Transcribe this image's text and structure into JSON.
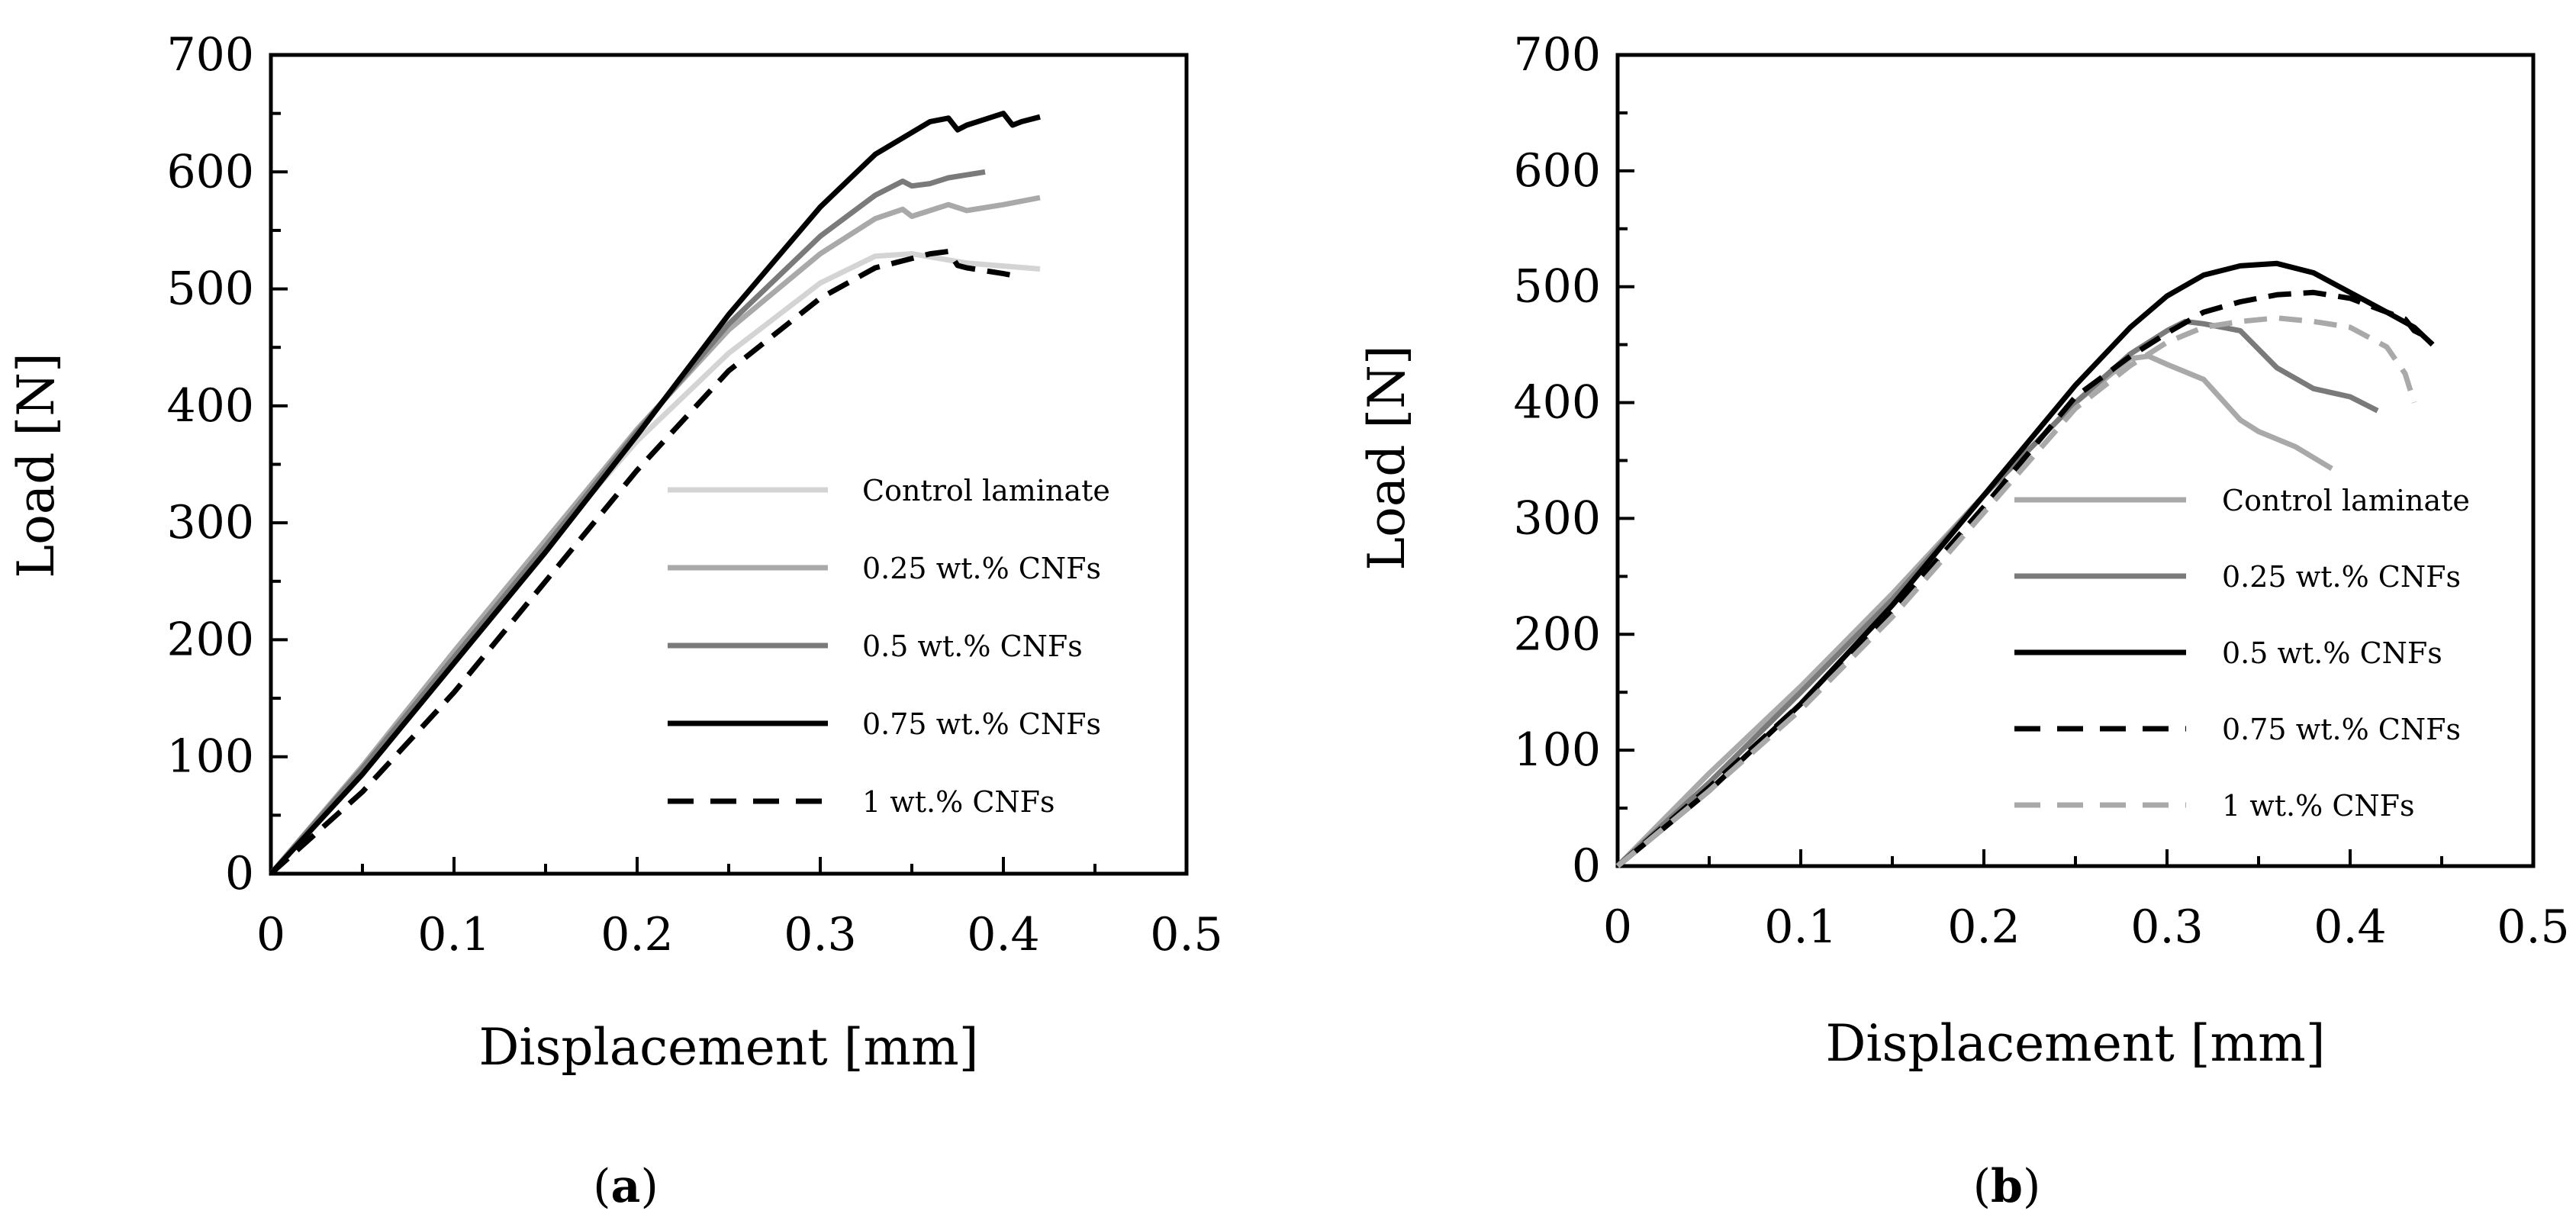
{
  "chart_data": [
    {
      "type": "line",
      "panel": "a",
      "caption_open": "(",
      "caption_letter": "a",
      "caption_close": ")",
      "xlabel": "Displacement [mm]",
      "ylabel": "Load [N]",
      "xlim": [
        0,
        0.5
      ],
      "ylim": [
        0,
        700
      ],
      "xticks": [
        "0",
        "0.1",
        "0.2",
        "0.3",
        "0.4",
        "0.5"
      ],
      "yticks": [
        "0",
        "100",
        "200",
        "300",
        "400",
        "500",
        "600",
        "700"
      ],
      "legend_position": "lower-right",
      "series": [
        {
          "name": "Control laminate",
          "color": "#d4d4d4",
          "dash": "solid",
          "x": [
            0,
            0.05,
            0.1,
            0.15,
            0.2,
            0.25,
            0.3,
            0.33,
            0.35,
            0.38,
            0.42
          ],
          "y": [
            0,
            90,
            185,
            280,
            370,
            445,
            505,
            528,
            530,
            522,
            517
          ]
        },
        {
          "name": "0.25 wt.% CNFs",
          "color": "#a9a9a9",
          "dash": "solid",
          "x": [
            0,
            0.05,
            0.1,
            0.15,
            0.2,
            0.25,
            0.3,
            0.33,
            0.345,
            0.35,
            0.37,
            0.38,
            0.4,
            0.42
          ],
          "y": [
            0,
            92,
            190,
            285,
            380,
            465,
            530,
            560,
            568,
            562,
            572,
            567,
            572,
            578
          ]
        },
        {
          "name": "0.5 wt.% CNFs",
          "color": "#7a7a7a",
          "dash": "solid",
          "x": [
            0,
            0.05,
            0.1,
            0.15,
            0.2,
            0.25,
            0.3,
            0.33,
            0.345,
            0.35,
            0.36,
            0.37,
            0.39
          ],
          "y": [
            0,
            90,
            185,
            280,
            378,
            470,
            545,
            580,
            592,
            588,
            590,
            595,
            600
          ]
        },
        {
          "name": "0.75 wt.% CNFs",
          "color": "#000000",
          "dash": "solid",
          "x": [
            0,
            0.05,
            0.1,
            0.15,
            0.2,
            0.25,
            0.3,
            0.33,
            0.36,
            0.37,
            0.375,
            0.38,
            0.39,
            0.4,
            0.405,
            0.41,
            0.42
          ],
          "y": [
            0,
            85,
            180,
            275,
            375,
            478,
            570,
            615,
            643,
            646,
            636,
            640,
            645,
            650,
            640,
            643,
            647
          ]
        },
        {
          "name": "1 wt.% CNFs",
          "color": "#000000",
          "dash": "dashed",
          "x": [
            0,
            0.05,
            0.1,
            0.15,
            0.2,
            0.25,
            0.3,
            0.33,
            0.36,
            0.37,
            0.375,
            0.38,
            0.4,
            0.41
          ],
          "y": [
            0,
            70,
            155,
            250,
            345,
            430,
            492,
            518,
            530,
            532,
            520,
            518,
            513,
            510
          ]
        }
      ]
    },
    {
      "type": "line",
      "panel": "b",
      "caption_open": "(",
      "caption_letter": "b",
      "caption_close": ")",
      "xlabel": "Displacement [mm]",
      "ylabel": "Load [N]",
      "xlim": [
        0,
        0.5
      ],
      "ylim": [
        0,
        700
      ],
      "xticks": [
        "0",
        "0.1",
        "0.2",
        "0.3",
        "0.4",
        "0.5"
      ],
      "yticks": [
        "0",
        "100",
        "200",
        "300",
        "400",
        "500",
        "600",
        "700"
      ],
      "legend_position": "lower-right",
      "series": [
        {
          "name": "Control laminate",
          "color": "#a9a9a9",
          "dash": "solid",
          "x": [
            0,
            0.05,
            0.1,
            0.15,
            0.2,
            0.25,
            0.28,
            0.29,
            0.3,
            0.32,
            0.34,
            0.35,
            0.37,
            0.39
          ],
          "y": [
            0,
            80,
            155,
            235,
            320,
            400,
            438,
            440,
            433,
            420,
            385,
            375,
            362,
            343
          ]
        },
        {
          "name": "0.25 wt.% CNFs",
          "color": "#7a7a7a",
          "dash": "solid",
          "x": [
            0,
            0.05,
            0.1,
            0.15,
            0.2,
            0.25,
            0.28,
            0.3,
            0.31,
            0.32,
            0.34,
            0.36,
            0.38,
            0.4,
            0.415
          ],
          "y": [
            0,
            72,
            150,
            230,
            320,
            400,
            442,
            462,
            470,
            468,
            462,
            430,
            412,
            405,
            393
          ]
        },
        {
          "name": "0.5 wt.% CNFs",
          "color": "#000000",
          "dash": "solid",
          "x": [
            0,
            0.05,
            0.1,
            0.15,
            0.2,
            0.25,
            0.28,
            0.3,
            0.32,
            0.34,
            0.36,
            0.38,
            0.4,
            0.42,
            0.435,
            0.445
          ],
          "y": [
            0,
            65,
            140,
            225,
            320,
            415,
            465,
            492,
            510,
            518,
            520,
            512,
            495,
            478,
            465,
            450
          ]
        },
        {
          "name": "0.75 wt.% CNFs",
          "color": "#000000",
          "dash": "dashed",
          "x": [
            0,
            0.05,
            0.1,
            0.15,
            0.2,
            0.25,
            0.28,
            0.3,
            0.32,
            0.34,
            0.36,
            0.38,
            0.4,
            0.42,
            0.43,
            0.435,
            0.44,
            0.445
          ],
          "y": [
            0,
            68,
            140,
            220,
            310,
            405,
            440,
            460,
            478,
            487,
            493,
            495,
            490,
            478,
            472,
            462,
            458,
            450
          ]
        },
        {
          "name": "1 wt.% CNFs",
          "color": "#a9a9a9",
          "dash": "dashed",
          "x": [
            0,
            0.05,
            0.1,
            0.15,
            0.2,
            0.25,
            0.28,
            0.3,
            0.32,
            0.34,
            0.36,
            0.38,
            0.4,
            0.42,
            0.43,
            0.435
          ],
          "y": [
            0,
            65,
            135,
            215,
            305,
            395,
            432,
            452,
            465,
            470,
            473,
            470,
            465,
            448,
            425,
            400
          ]
        }
      ]
    }
  ]
}
